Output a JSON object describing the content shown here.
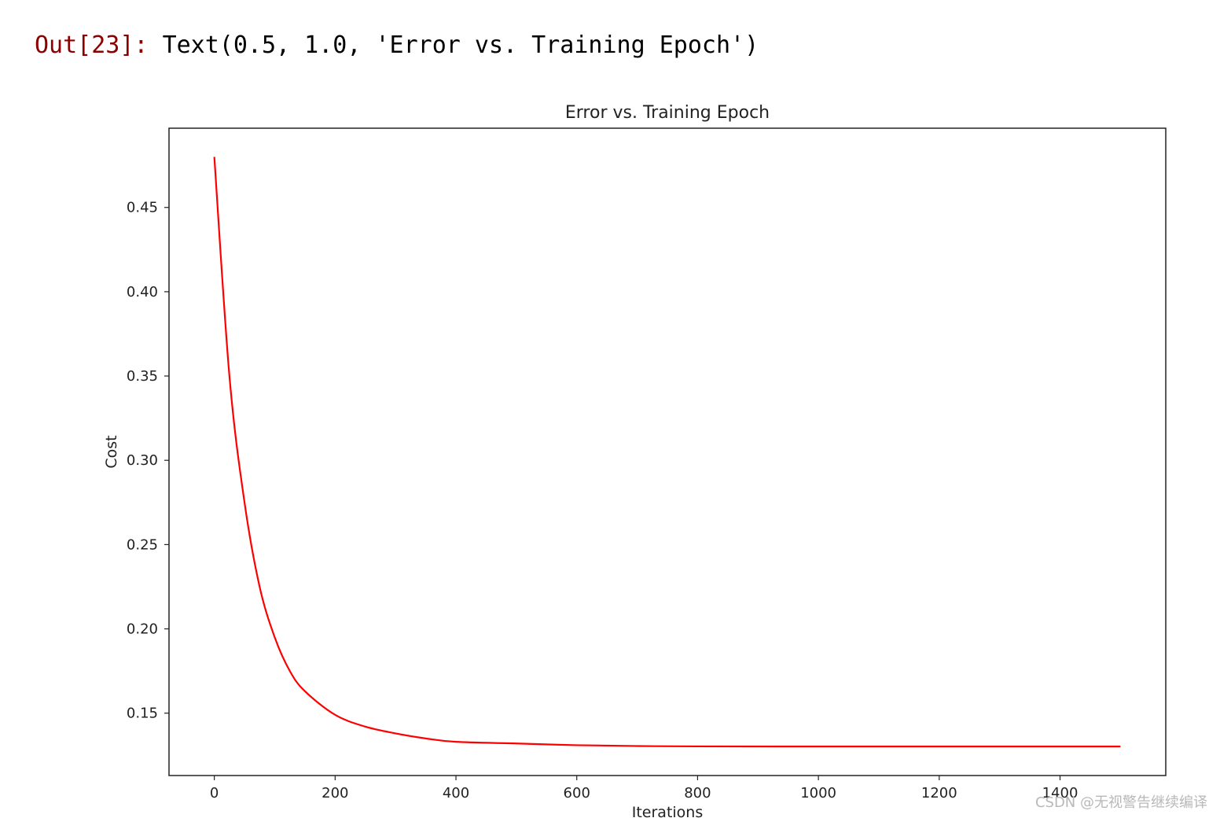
{
  "output": {
    "prompt": "Out[23]:",
    "text": "Text(0.5, 1.0, 'Error vs. Training Epoch')"
  },
  "watermark": "CSDN @无视警告继续编译",
  "chart_data": {
    "type": "line",
    "title": "Error vs. Training Epoch",
    "xlabel": "Iterations",
    "ylabel": "Cost",
    "xlim": [
      -75,
      1575
    ],
    "ylim": [
      0.113,
      0.497
    ],
    "xticks": [
      0,
      200,
      400,
      600,
      800,
      1000,
      1200,
      1400
    ],
    "yticks": [
      0.15,
      0.2,
      0.25,
      0.3,
      0.35,
      0.4,
      0.45
    ],
    "ytick_labels": [
      "0.15",
      "0.20",
      "0.25",
      "0.30",
      "0.35",
      "0.40",
      "0.45"
    ],
    "grid": false,
    "line_color": "#ff0000",
    "series": [
      {
        "x": [
          0,
          25,
          50,
          75,
          100,
          125,
          150,
          200,
          250,
          300,
          350,
          400,
          500,
          600,
          700,
          800,
          1000,
          1200,
          1500
        ],
        "values": [
          0.48,
          0.35,
          0.275,
          0.225,
          0.195,
          0.175,
          0.163,
          0.149,
          0.142,
          0.138,
          0.135,
          0.133,
          0.132,
          0.131,
          0.1305,
          0.1303,
          0.1302,
          0.1302,
          0.1302
        ]
      }
    ]
  }
}
